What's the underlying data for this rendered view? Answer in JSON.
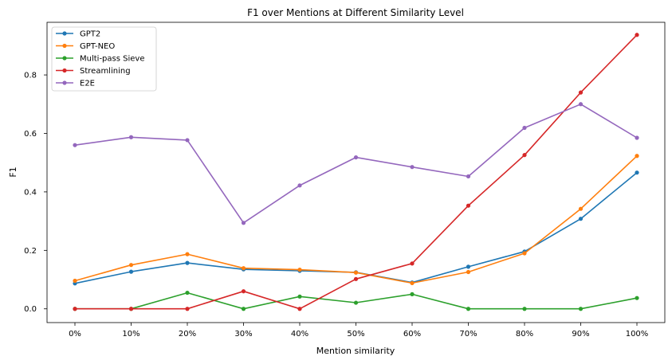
{
  "chart_data": {
    "type": "line",
    "title": "F1 over Mentions at Different Similarity Level",
    "xlabel": "Mention similarity",
    "ylabel": "F1",
    "categories": [
      "0%",
      "10%",
      "20%",
      "30%",
      "40%",
      "50%",
      "60%",
      "70%",
      "80%",
      "90%",
      "100%"
    ],
    "ylim": [
      -0.047,
      0.98
    ],
    "yticks": [
      0.0,
      0.2,
      0.4,
      0.6,
      0.8
    ],
    "ytick_labels": [
      "0.0",
      "0.2",
      "0.4",
      "0.6",
      "0.8"
    ],
    "grid": false,
    "legend_position": "top-left",
    "series": [
      {
        "name": "GPT2",
        "color": "#1f77b4",
        "values": [
          0.087,
          0.127,
          0.157,
          0.135,
          0.13,
          0.125,
          0.09,
          0.144,
          0.196,
          0.308,
          0.466
        ]
      },
      {
        "name": "GPT-NEO",
        "color": "#ff7f0e",
        "values": [
          0.096,
          0.15,
          0.187,
          0.139,
          0.134,
          0.124,
          0.088,
          0.126,
          0.19,
          0.342,
          0.523
        ]
      },
      {
        "name": "Multi-pass Sieve",
        "color": "#2ca02c",
        "values": [
          0.0,
          0.0,
          0.055,
          0.0,
          0.042,
          0.021,
          0.05,
          0.0,
          0.0,
          0.0,
          0.037
        ]
      },
      {
        "name": "Streamlining",
        "color": "#d62728",
        "values": [
          0.0,
          0.0,
          0.0,
          0.06,
          0.0,
          0.102,
          0.155,
          0.353,
          0.526,
          0.74,
          0.937
        ]
      },
      {
        "name": "E2E",
        "color": "#9467bd",
        "values": [
          0.56,
          0.587,
          0.577,
          0.294,
          0.422,
          0.518,
          0.485,
          0.453,
          0.619,
          0.7,
          0.585
        ]
      }
    ]
  }
}
